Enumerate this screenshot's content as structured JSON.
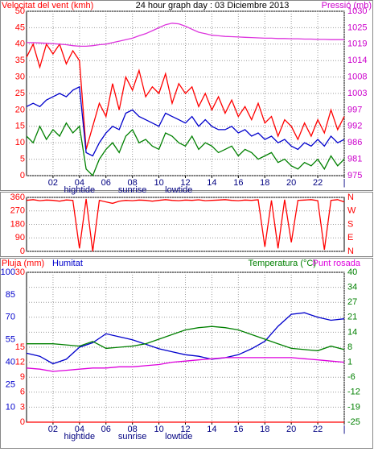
{
  "chart_data": [
    {
      "type": "line",
      "title": "24 hour graph day : 03 Diciembre 2013",
      "ylabel": "Velocitat del vent (kmh)",
      "ycolor": "#ff0000",
      "y2label": "Pressió (mb)",
      "y2color": "#cc00cc",
      "x": [
        0,
        0.5,
        1,
        1.5,
        2,
        2.5,
        3,
        3.5,
        4,
        4.5,
        5,
        5.5,
        6,
        6.5,
        7,
        7.5,
        8,
        8.5,
        9,
        9.5,
        10,
        10.5,
        11,
        11.5,
        12,
        12.5,
        13,
        13.5,
        14,
        14.5,
        15,
        15.5,
        16,
        16.5,
        17,
        17.5,
        18,
        18.5,
        19,
        19.5,
        20,
        20.5,
        21,
        21.5,
        22,
        22.5,
        23,
        23.5,
        24
      ],
      "xlim": [
        0,
        24
      ],
      "xticks": [
        {
          "value": 2,
          "label": "02"
        },
        {
          "value": 4,
          "label": "04"
        },
        {
          "value": 6,
          "label": "06"
        },
        {
          "value": 8,
          "label": "08"
        },
        10,
        12,
        14,
        16,
        18,
        20,
        22,
        {
          "value": 24,
          "label": "|"
        }
      ],
      "ylim": [
        0,
        50
      ],
      "yticks": [
        0,
        5,
        10,
        15,
        20,
        25,
        30,
        35,
        40,
        45,
        50
      ],
      "y2lim": [
        975,
        1030
      ],
      "y2ticks": [
        975,
        {
          "value": 980.5,
          "label": "981"
        },
        986,
        {
          "value": 991.5,
          "label": "992"
        },
        997,
        {
          "value": 1002.5,
          "label": "1003"
        },
        1008,
        {
          "value": 1013.5,
          "label": "1014"
        },
        1019,
        {
          "value": 1024.5,
          "label": "1025"
        },
        1030
      ],
      "grid": "y",
      "annotations": [
        {
          "text": "hightide",
          "x": 4
        },
        {
          "text": "sunrise",
          "x": 8
        },
        {
          "text": "lowtide",
          "x": 11.5
        }
      ],
      "series": [
        {
          "color": "#ff0000",
          "values": [
            36,
            40,
            33,
            40,
            37,
            40,
            34,
            38,
            35,
            8,
            15,
            22,
            18,
            28,
            20,
            30,
            26,
            32,
            24,
            27,
            25,
            31,
            22,
            28,
            25,
            27,
            21,
            25,
            20,
            24,
            19,
            23,
            18,
            21,
            17,
            22,
            16,
            18,
            12,
            17,
            15,
            11,
            16,
            12,
            17,
            13,
            20,
            14,
            18
          ]
        },
        {
          "color": "#008000",
          "values": [
            12,
            10,
            15,
            11,
            14,
            12,
            16,
            13,
            15,
            2,
            0,
            5,
            8,
            10,
            7,
            12,
            14,
            10,
            11,
            9,
            8,
            13,
            12,
            10,
            9,
            12,
            8,
            10,
            9,
            7,
            8,
            9,
            6,
            8,
            7,
            5,
            6,
            7,
            4,
            5,
            3,
            2,
            4,
            3,
            5,
            2,
            6,
            3,
            5
          ]
        },
        {
          "color": "#0000cc",
          "values": [
            21,
            22,
            21,
            23,
            24,
            25,
            24,
            26,
            27,
            7,
            6,
            10,
            13,
            15,
            14,
            19,
            20,
            18,
            17,
            16,
            15,
            19,
            18,
            17,
            16,
            18,
            15,
            17,
            15,
            14,
            14,
            15,
            13,
            14,
            12,
            13,
            11,
            12,
            10,
            11,
            9,
            8,
            10,
            9,
            11,
            9,
            12,
            10,
            11
          ]
        },
        {
          "color": "#dd33dd",
          "axis": "y2",
          "values": [
            1019.5,
            1019.5,
            1019.4,
            1019.3,
            1019.2,
            1019,
            1018.8,
            1018.5,
            1018.3,
            1018.3,
            1018.5,
            1018.8,
            1019,
            1019.5,
            1020,
            1020.5,
            1021,
            1021.8,
            1022.5,
            1023.5,
            1024.5,
            1025.5,
            1026,
            1025.8,
            1025,
            1024,
            1023,
            1022.5,
            1022,
            1021.8,
            1021.6,
            1021.5,
            1021.4,
            1021.3,
            1021.2,
            1021.1,
            1021,
            1021,
            1020.9,
            1020.9,
            1020.8,
            1020.8,
            1020.7,
            1020.7,
            1020.6,
            1020.6,
            1020.5,
            1020.5,
            1020.5
          ]
        }
      ]
    },
    {
      "type": "line",
      "ycolor": "#ff0000",
      "y2color": "#ff0000",
      "x": [
        0,
        0.5,
        1,
        1.5,
        2,
        2.5,
        3,
        3.5,
        4,
        4.5,
        5,
        5.5,
        6,
        6.5,
        7,
        7.5,
        8,
        8.5,
        9,
        9.5,
        10,
        10.5,
        11,
        11.5,
        12,
        12.5,
        13,
        13.5,
        14,
        14.5,
        15,
        15.5,
        16,
        16.5,
        17,
        17.5,
        18,
        18.5,
        19,
        19.5,
        20,
        20.5,
        21,
        21.5,
        22,
        22.5,
        23,
        23.5,
        24
      ],
      "xlim": [
        0,
        24
      ],
      "ylim": [
        0,
        360
      ],
      "yticks": [
        0,
        90,
        180,
        270,
        360
      ],
      "y2lim": [
        0,
        360
      ],
      "y2ticks": [
        {
          "value": 0,
          "label": "N"
        },
        {
          "value": 90,
          "label": "E"
        },
        {
          "value": 180,
          "label": "S"
        },
        {
          "value": 270,
          "label": "W"
        },
        {
          "value": 360,
          "label": "N"
        }
      ],
      "grid": "y",
      "series": [
        {
          "color": "#ff0000",
          "values": [
            340,
            345,
            338,
            342,
            340,
            335,
            343,
            340,
            20,
            350,
            0,
            340,
            330,
            320,
            335,
            340,
            338,
            342,
            340,
            335,
            340,
            345,
            340,
            338,
            342,
            340,
            344,
            338,
            340,
            342,
            345,
            340,
            338,
            342,
            340,
            344,
            30,
            340,
            20,
            345,
            60,
            340,
            342,
            345,
            338,
            10,
            340,
            345,
            330
          ]
        }
      ]
    },
    {
      "type": "line",
      "ycolor": "#ff0000",
      "y2color": "#008000",
      "y3color": "#0000cc",
      "x": [
        0,
        1,
        2,
        3,
        4,
        5,
        6,
        7,
        8,
        9,
        10,
        11,
        12,
        13,
        14,
        15,
        16,
        17,
        18,
        19,
        20,
        21,
        22,
        23,
        24
      ],
      "xlim": [
        0,
        24
      ],
      "xticks": [
        {
          "value": 2,
          "label": "02"
        },
        {
          "value": 4,
          "label": "04"
        },
        {
          "value": 6,
          "label": "06"
        },
        {
          "value": 8,
          "label": "08"
        },
        10,
        12,
        14,
        16,
        18,
        20,
        22,
        {
          "value": 24,
          "label": "|"
        }
      ],
      "ylim": [
        0,
        30
      ],
      "yticks": [
        0,
        3,
        6,
        9,
        12,
        15,
        30
      ],
      "y3lim": [
        0,
        100
      ],
      "y3ticks": [
        10,
        25,
        40,
        55,
        70,
        85,
        100
      ],
      "y2lim": [
        -25,
        40
      ],
      "y2ticks": [
        -25,
        {
          "value": -18.5,
          "label": "-19"
        },
        -12,
        {
          "value": -5.5,
          "label": "-6"
        },
        1,
        {
          "value": 7.5,
          "label": "8"
        },
        14,
        {
          "value": 20.5,
          "label": "21"
        },
        27,
        {
          "value": 33.5,
          "label": "34"
        },
        40
      ],
      "grid": "y2",
      "annotations": [
        {
          "text": "hightide",
          "x": 4
        },
        {
          "text": "sunrise",
          "x": 8
        },
        {
          "text": "lowtide",
          "x": 11.5
        }
      ],
      "series": [
        {
          "name": "Pluja (mm)",
          "color": "#ff0000",
          "values": [
            0,
            0,
            0,
            0,
            0,
            0,
            0,
            0,
            0,
            0,
            0,
            0,
            0,
            0,
            0,
            0,
            0,
            0,
            0,
            0,
            0,
            0,
            0,
            0,
            0
          ]
        },
        {
          "name": "Humitat",
          "color": "#0000cc",
          "axis": "y3",
          "values": [
            46,
            44,
            39,
            42,
            50,
            53,
            59,
            57,
            55,
            52,
            49,
            47,
            45,
            44,
            42,
            43,
            45,
            49,
            54,
            64,
            72,
            73,
            70,
            68,
            69
          ]
        },
        {
          "name": "Temperatura (°C)",
          "color": "#008000",
          "axis": "y2",
          "values": [
            9,
            9,
            9,
            8.5,
            8,
            10,
            7,
            7.5,
            8,
            9,
            11,
            13,
            15,
            16,
            16.5,
            16,
            15,
            13,
            11,
            9,
            7,
            6.5,
            6,
            8,
            6.5
          ]
        },
        {
          "name": "Punt rosada",
          "color": "#dd00dd",
          "axis": "y2",
          "values": [
            -1.5,
            -2,
            -3,
            -2.5,
            -2,
            -1.5,
            -1.5,
            -1,
            -1,
            -0.5,
            0,
            1,
            1.5,
            2,
            2.5,
            3,
            3,
            3,
            3,
            3,
            3,
            2.5,
            2,
            1.5,
            1
          ]
        }
      ]
    }
  ]
}
